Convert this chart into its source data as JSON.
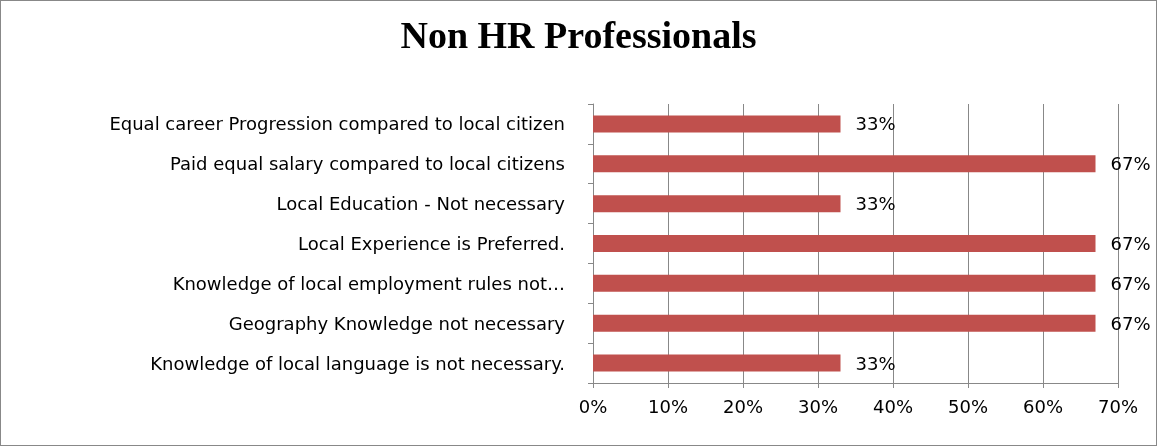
{
  "chart_data": {
    "type": "bar",
    "orientation": "horizontal",
    "title": "Non HR Professionals",
    "categories": [
      "Equal career Progression compared to local citizen",
      "Paid equal salary compared to local citizens",
      "Local Education - Not necessary",
      "Local Experience is Preferred.",
      "Knowledge of local employment rules not…",
      "Geography Knowledge not necessary",
      "Knowledge of local language is not necessary."
    ],
    "values": [
      33,
      67,
      33,
      67,
      67,
      67,
      33
    ],
    "value_labels": [
      "33%",
      "67%",
      "33%",
      "67%",
      "67%",
      "67%",
      "33%"
    ],
    "color": "#c0504d",
    "xlim": [
      0,
      70
    ],
    "xticks": [
      {
        "value": 0,
        "label": "0%"
      },
      {
        "value": 10,
        "label": "10%"
      },
      {
        "value": 20,
        "label": "20%"
      },
      {
        "value": 30,
        "label": "30%"
      },
      {
        "value": 40,
        "label": "40%"
      },
      {
        "value": 50,
        "label": "50%"
      },
      {
        "value": 60,
        "label": "60%"
      },
      {
        "value": 70,
        "label": "70%"
      }
    ],
    "grid": "x"
  }
}
